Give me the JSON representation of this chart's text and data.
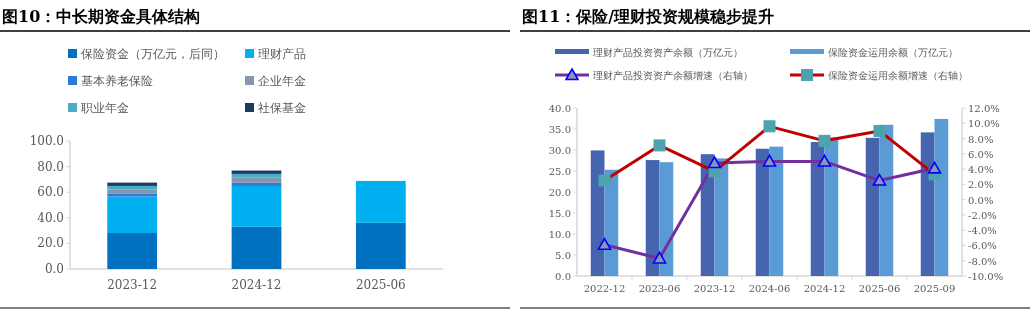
{
  "chart_data": [
    {
      "type": "bar",
      "title": "图10：中长期资金具体结构",
      "stacked": true,
      "legend": "top",
      "categories": [
        "2023-12",
        "2024-12",
        "2025-06"
      ],
      "series": [
        {
          "name": "保险资金（万亿元，后同）",
          "color": "#0070c0",
          "values": [
            28.1,
            33.0,
            36.1
          ]
        },
        {
          "name": "理财产品",
          "color": "#00b0f0",
          "values": [
            28.5,
            31.9,
            32.7
          ]
        },
        {
          "name": "基本养老保险",
          "color": "#2e7bd6",
          "values": [
            2.1,
            2.4,
            null
          ]
        },
        {
          "name": "企业年金",
          "color": "#8497b0",
          "values": [
            3.6,
            4.1,
            null
          ]
        },
        {
          "name": "职业年金",
          "color": "#4bacc6",
          "values": [
            2.6,
            2.9,
            null
          ]
        },
        {
          "name": "社保基金",
          "color": "#203864",
          "values": [
            2.6,
            2.6,
            null
          ]
        }
      ],
      "ylim": [
        0,
        100
      ],
      "yticks": [
        {
          "value": 0,
          "label": "0.0"
        },
        {
          "value": 20,
          "label": "20.0"
        },
        {
          "value": 40,
          "label": "40.0"
        },
        {
          "value": 60,
          "label": "60.0"
        },
        {
          "value": 80,
          "label": "80.0"
        },
        {
          "value": 100,
          "label": "100.0"
        }
      ]
    },
    {
      "type": "bar",
      "title": "图11：保险/理财投资规模稳步提升",
      "legend": "top",
      "categories": [
        "2022-12",
        "2023-06",
        "2023-12",
        "2024-06",
        "2024-12",
        "2025-06",
        "2025-09"
      ],
      "series": [
        {
          "name": "理财产品投资资产余额（万亿元）",
          "color": "#4764ae",
          "values": [
            29.9,
            27.6,
            29.0,
            30.3,
            31.9,
            32.9,
            34.2
          ]
        },
        {
          "name": "保险资金运用余额（万亿元）",
          "color": "#5b9bd5",
          "values": [
            25.3,
            27.1,
            28.0,
            30.8,
            33.0,
            36.0,
            37.4
          ]
        },
        {
          "name": "理财产品投资资产余额增速（右轴）",
          "type": "line",
          "axis": "y2",
          "marker": "triangle",
          "color": "#7030a0",
          "values": [
            -5.9,
            -7.7,
            4.8,
            5.0,
            5.0,
            2.5,
            4.1
          ]
        },
        {
          "name": "保险资金运用余额增速（右轴）",
          "type": "line",
          "axis": "y2",
          "marker": "square",
          "color": "#c00000",
          "values": [
            2.5,
            7.1,
            3.7,
            9.6,
            7.7,
            9.0,
            3.3
          ]
        }
      ],
      "ylim": [
        0,
        40
      ],
      "yticks": [
        {
          "value": 0,
          "label": "0.0"
        },
        {
          "value": 5,
          "label": "5.0"
        },
        {
          "value": 10,
          "label": "10.0"
        },
        {
          "value": 15,
          "label": "15.0"
        },
        {
          "value": 20,
          "label": "20.0"
        },
        {
          "value": 25,
          "label": "25.0"
        },
        {
          "value": 30,
          "label": "30.0"
        },
        {
          "value": 35,
          "label": "35.0"
        },
        {
          "value": 40,
          "label": "40.0"
        }
      ],
      "y2lim": [
        -10,
        12
      ],
      "y2ticks": [
        {
          "value": -10,
          "label": "-10.0%"
        },
        {
          "value": -8,
          "label": "-8.0%"
        },
        {
          "value": -6,
          "label": "-6.0%"
        },
        {
          "value": -4,
          "label": "-4.0%"
        },
        {
          "value": -2,
          "label": "-2.0%"
        },
        {
          "value": 0,
          "label": "0.0%"
        },
        {
          "value": 2,
          "label": "2.0%"
        },
        {
          "value": 4,
          "label": "4.0%"
        },
        {
          "value": 6,
          "label": "6.0%"
        },
        {
          "value": 8,
          "label": "8.0%"
        },
        {
          "value": 10,
          "label": "10.0%"
        },
        {
          "value": 12,
          "label": "12.0%"
        }
      ]
    }
  ]
}
